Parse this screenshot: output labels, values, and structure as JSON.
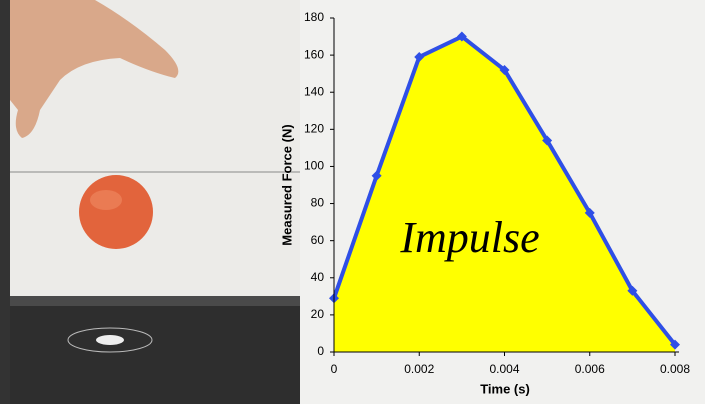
{
  "chart_data": {
    "type": "area",
    "annotation": "Impulse",
    "x_label": "Time (s)",
    "y_label": "Measured Force (N)",
    "x": [
      0,
      0.001,
      0.002,
      0.003,
      0.004,
      0.005,
      0.006,
      0.007,
      0.008
    ],
    "values": [
      29,
      95,
      159,
      170,
      152,
      114,
      75,
      33,
      4
    ],
    "color": "#2f4fe6",
    "fill": "#ffff00",
    "xlim": [
      0,
      0.008
    ],
    "xticks": [
      0,
      0.002,
      0.004,
      0.006,
      0.008
    ],
    "ylim": [
      0,
      180
    ],
    "yticks": [
      0,
      20,
      40,
      60,
      80,
      100,
      120,
      140,
      160,
      180
    ]
  }
}
